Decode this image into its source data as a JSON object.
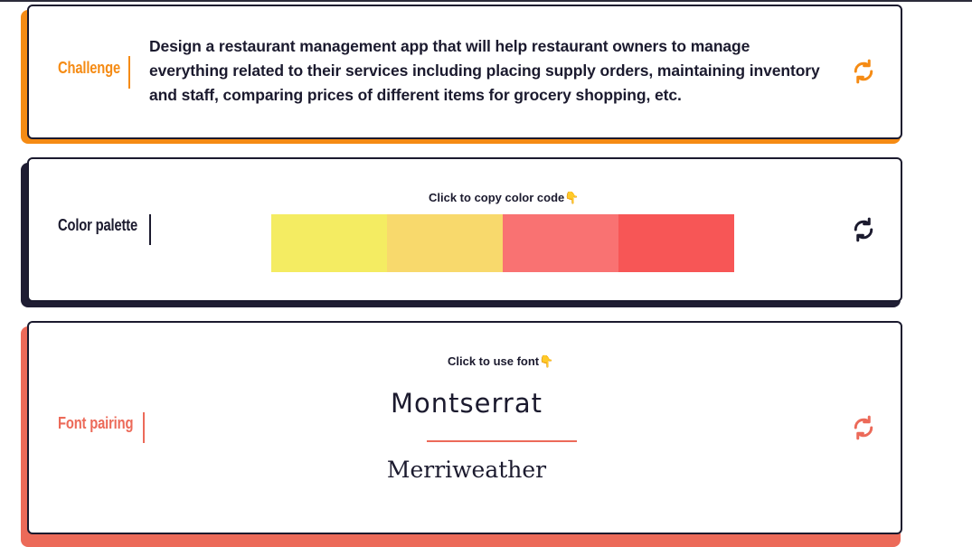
{
  "challenge": {
    "label": "Challenge",
    "text": "Design a restaurant management app that will help restaurant owners to manage everything related to their services including placing supply orders, maintaining inventory and staff, comparing prices of different items for grocery shopping, etc.",
    "accent": "#f58b14",
    "refresh_icon": "refresh-icon"
  },
  "palette": {
    "label": "Color palette",
    "hint": "Click to copy color code",
    "hint_emoji": "👇",
    "accent": "#1f1d33",
    "colors": [
      "#f4ec62",
      "#f8d96c",
      "#f97272",
      "#f75656"
    ],
    "refresh_icon": "refresh-icon"
  },
  "fonts": {
    "label": "Font pairing",
    "hint": "Click to use font",
    "hint_emoji": "👇",
    "accent": "#ec6a59",
    "primary": "Montserrat",
    "secondary": "Merriweather",
    "refresh_icon": "refresh-icon"
  }
}
